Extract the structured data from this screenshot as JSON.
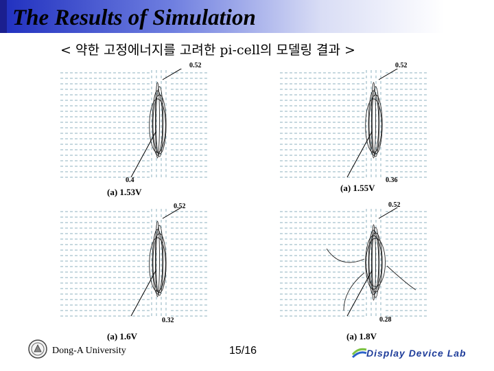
{
  "slide": {
    "title": "The Results of Simulation",
    "subtitle": "< 약한 고정에너지를 고려한 pi-cell의 모델링 결과 >"
  },
  "panels": [
    {
      "caption": "(a) 1.53V",
      "top_label": "0.52",
      "bottom_label": "0.4"
    },
    {
      "caption": "(a) 1.55V",
      "top_label": "0.52",
      "bottom_label": "0.36"
    },
    {
      "caption": "(a) 1.6V",
      "top_label": "0.52",
      "bottom_label": "0.32"
    },
    {
      "caption": "(a) 1.8V",
      "top_label": "0.52",
      "bottom_label": "0.28"
    }
  ],
  "footer": {
    "university": "Dong-A University",
    "page": "15/16",
    "lab_logo": "Display Device Lab",
    "seal_icon": "university-seal-icon",
    "lab_icon": "lab-swoosh-icon"
  },
  "colors": {
    "title_gradient_start": "#1f2fbf",
    "grid": "#7fa8b8",
    "contour": "#222222",
    "lab_text": "#1f3d9a",
    "lab_swoosh_green": "#7cc242",
    "lab_swoosh_blue": "#2a62c9"
  }
}
